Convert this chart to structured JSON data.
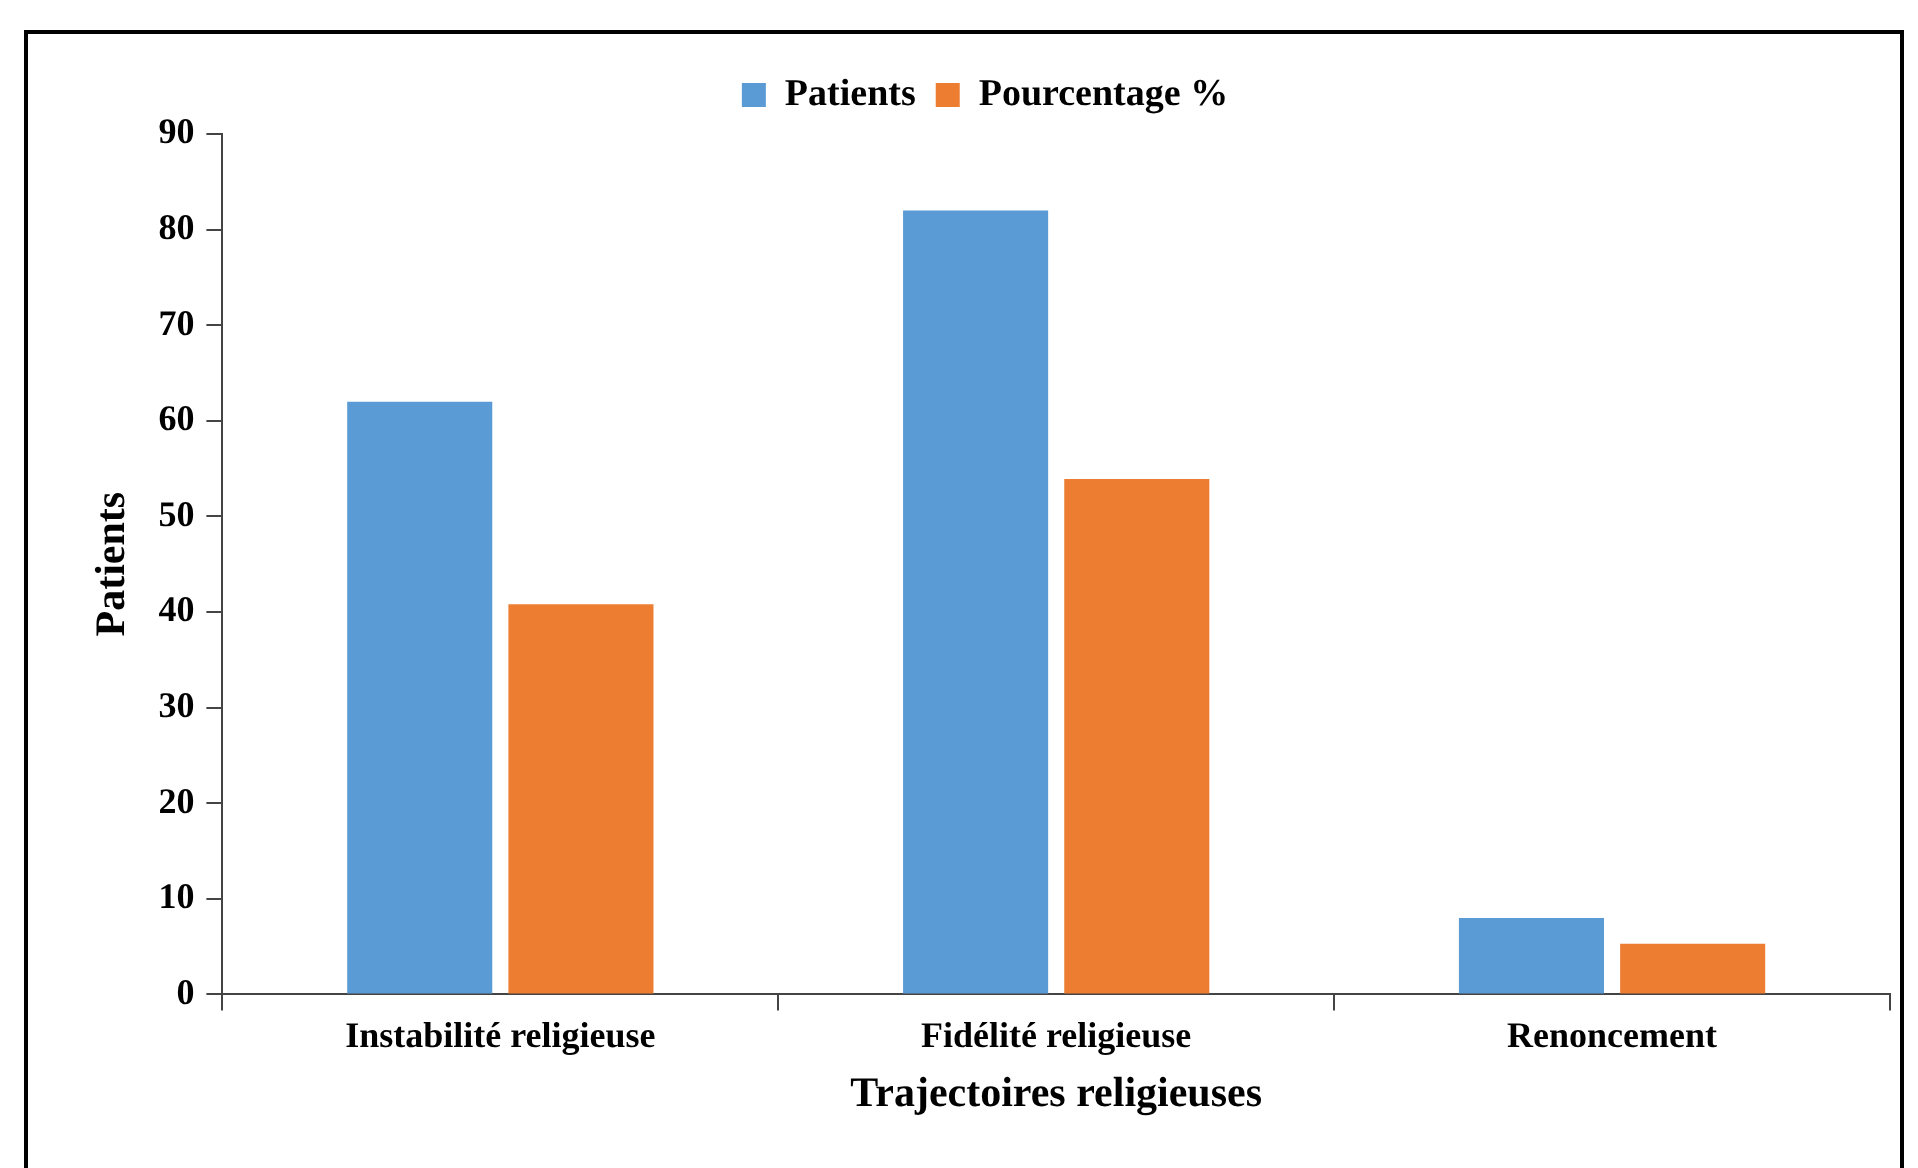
{
  "chart_data": {
    "type": "bar",
    "xlabel": "Trajectoires religieuses",
    "ylabel": "Patients",
    "categories": [
      "Instabilité religieuse",
      "Fidélité religieuse",
      "Renoncement"
    ],
    "series": [
      {
        "name": "Patients",
        "color": "#5b9bd5",
        "values": [
          62,
          82,
          8
        ]
      },
      {
        "name": "Pourcentage %",
        "color": "#ed7d31",
        "values": [
          40.8,
          53.9,
          5.3
        ]
      }
    ],
    "ylim": [
      0,
      90
    ],
    "yticks": [
      0,
      10,
      20,
      30,
      40,
      50,
      60,
      70,
      80,
      90
    ],
    "grid": false,
    "legend": "top"
  }
}
